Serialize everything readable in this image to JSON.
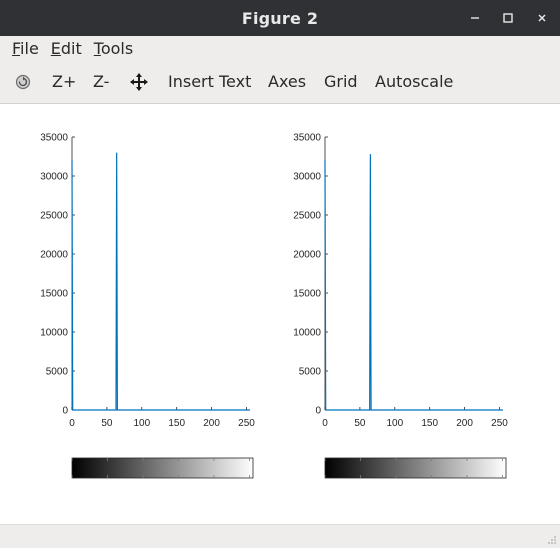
{
  "window": {
    "title": "Figure 2",
    "controls": {
      "minimize": "–",
      "maximize": "□",
      "close": "×"
    }
  },
  "menu": [
    {
      "key": "F",
      "rest": "ile"
    },
    {
      "key": "E",
      "rest": "dit"
    },
    {
      "key": "T",
      "rest": "ools"
    }
  ],
  "toolbar": {
    "rotate_icon": "rotate-icon",
    "zoom_in": "Z+",
    "zoom_out": "Z-",
    "pan_icon": "pan-icon",
    "insert_text": "Insert Text",
    "axes": "Axes",
    "grid": "Grid",
    "autoscale": "Autoscale"
  },
  "colors": {
    "line": "#0072bd",
    "axis": "#262626",
    "titlebar": "#2f3134",
    "chrome": "#efedeb"
  },
  "chart_data": [
    {
      "type": "line",
      "xlim": [
        0,
        255
      ],
      "ylim": [
        0,
        35000
      ],
      "xticks": [
        0,
        50,
        100,
        150,
        200,
        250
      ],
      "yticks": [
        0,
        5000,
        10000,
        15000,
        20000,
        25000,
        30000,
        35000
      ],
      "series": [
        {
          "x": [
            0,
            1,
            63,
            64,
            65,
            255
          ],
          "y": [
            32000,
            0,
            0,
            33000,
            0,
            0
          ]
        }
      ],
      "colorbar": {
        "colormap": "gray",
        "range": [
          0,
          255
        ]
      }
    },
    {
      "type": "line",
      "xlim": [
        0,
        255
      ],
      "ylim": [
        0,
        35000
      ],
      "xticks": [
        0,
        50,
        100,
        150,
        200,
        250
      ],
      "yticks": [
        0,
        5000,
        10000,
        15000,
        20000,
        25000,
        30000,
        35000
      ],
      "series": [
        {
          "x": [
            0,
            1,
            64,
            65,
            66,
            255
          ],
          "y": [
            32000,
            0,
            0,
            32800,
            0,
            0
          ]
        }
      ],
      "colorbar": {
        "colormap": "gray",
        "range": [
          0,
          255
        ]
      }
    }
  ]
}
